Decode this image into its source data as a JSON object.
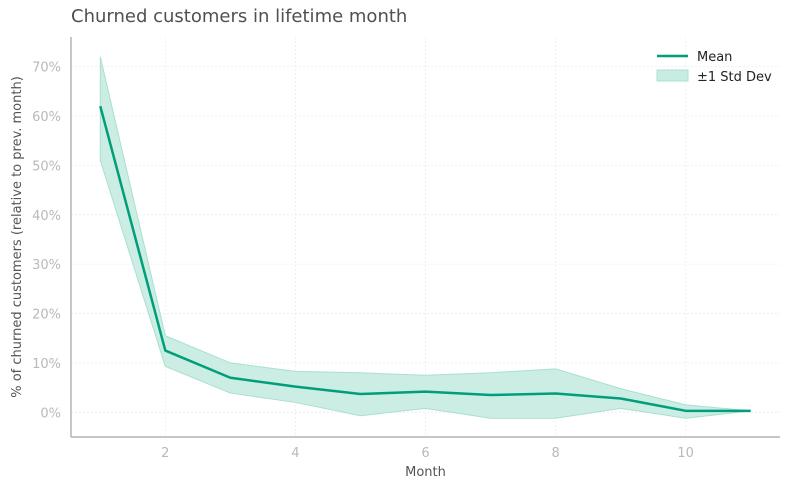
{
  "chart_data": {
    "type": "line",
    "title": "Churned customers in lifetime month",
    "xlabel": "Month",
    "ylabel": "% of churned customers (relative to prev. month)",
    "x": [
      1,
      2,
      3,
      4,
      5,
      6,
      7,
      8,
      9,
      10,
      11
    ],
    "xticks": [
      2,
      4,
      6,
      8,
      10
    ],
    "xlim": [
      0.55,
      11.45
    ],
    "yticks": [
      0,
      10,
      20,
      30,
      40,
      50,
      60,
      70
    ],
    "ytick_labels": [
      "0%",
      "10%",
      "20%",
      "30%",
      "40%",
      "50%",
      "60%",
      "70%"
    ],
    "ylim": [
      -5,
      76
    ],
    "grid": true,
    "legend_position": "top-right",
    "series": [
      {
        "name": "Mean",
        "kind": "line",
        "color": "#009e7a",
        "values": [
          62.0,
          12.5,
          7.0,
          5.2,
          3.7,
          4.2,
          3.5,
          3.8,
          2.8,
          0.3,
          0.3
        ]
      },
      {
        "name": "±1 Std Dev",
        "kind": "band",
        "color": "#a8e0d0",
        "lower": [
          51.0,
          9.3,
          3.9,
          2.0,
          -0.7,
          0.8,
          -1.2,
          -1.2,
          0.8,
          -1.2,
          0.3
        ],
        "upper": [
          72.0,
          15.5,
          10.0,
          8.3,
          8.0,
          7.5,
          8.0,
          8.8,
          4.8,
          1.5,
          0.3
        ]
      }
    ]
  }
}
